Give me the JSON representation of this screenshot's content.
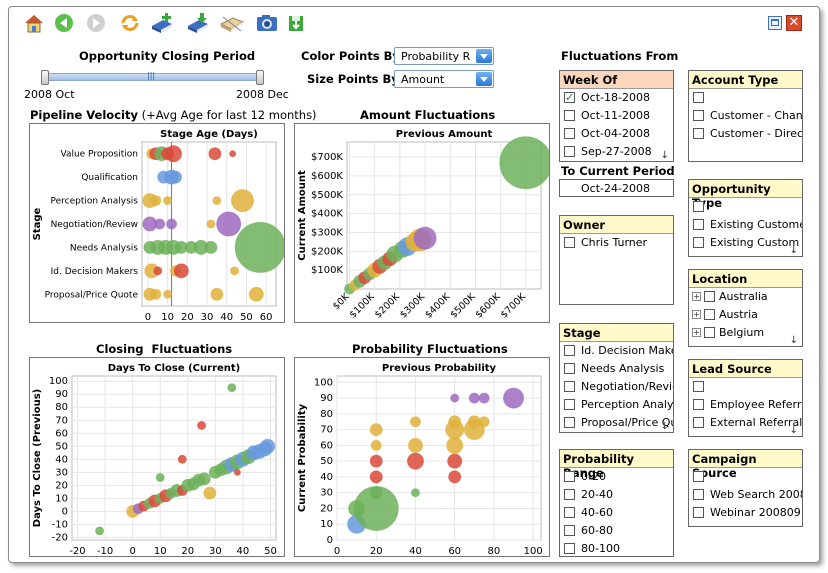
{
  "toolbar": {
    "buttons": [
      {
        "name": "home-icon",
        "color": "#4a7fc8"
      },
      {
        "name": "back-icon",
        "color": "#3aa83a"
      },
      {
        "name": "forward-icon",
        "color": "#bbbbbb"
      },
      {
        "name": "refresh-icon",
        "color": "#e8a020"
      },
      {
        "name": "add-book-icon",
        "color": "#3b6fc2"
      },
      {
        "name": "download-book-icon",
        "color": "#3b6fc2"
      },
      {
        "name": "hide-book-icon",
        "color": "#d8b070"
      },
      {
        "name": "camera-icon",
        "color": "#3b6fc2"
      },
      {
        "name": "save-icon",
        "color": "#3aa83a"
      }
    ]
  },
  "window_controls": {
    "restore": "restore-icon",
    "close": "close-icon"
  },
  "period": {
    "title": "Opportunity Closing Period",
    "start": "2008 Oct",
    "end": "2008 Dec"
  },
  "color_points": {
    "label": "Color Points By:",
    "value": "Probability R"
  },
  "size_points": {
    "label": "Size Points By:",
    "value": "Amount"
  },
  "fluctuations_from": "Fluctuations From",
  "week_of": {
    "title": "Week Of",
    "items": [
      "Oct-18-2008",
      "Oct-11-2008",
      "Oct-04-2008",
      "Sep-27-2008"
    ],
    "checked": [
      true,
      false,
      false,
      false
    ]
  },
  "to_current": {
    "label": "To Current Period",
    "value": "Oct-24-2008"
  },
  "owner": {
    "title": "Owner",
    "items": [
      "Chris Turner"
    ]
  },
  "stage_filter": {
    "title": "Stage",
    "items": [
      "Id. Decision Make",
      "Needs Analysis",
      "Negotiation/Reviev",
      "Perception Analys",
      "Proposal/Price Qu"
    ]
  },
  "prob_range": {
    "title": "Probability Range",
    "items": [
      "0-20",
      "20-40",
      "40-60",
      "60-80",
      "80-100"
    ]
  },
  "account_type": {
    "title": "Account Type",
    "items": [
      "",
      "Customer - Chann",
      "Customer - Direct"
    ]
  },
  "opp_type": {
    "title": "Opportunity Type",
    "items": [
      "",
      "Existing Customer",
      "Existing Custom"
    ]
  },
  "location": {
    "title": "Location",
    "items": [
      "Australia",
      "Austria",
      "Belgium"
    ]
  },
  "lead_source": {
    "title": "Lead Source",
    "items": [
      "",
      "Employee Referral",
      "External Referral"
    ]
  },
  "campaign": {
    "title": "Campaign Source",
    "items": [
      "",
      "Web Search 2008",
      "Webinar 200809"
    ]
  },
  "chart_data": [
    {
      "type": "scatter",
      "title": "Pipeline Velocity",
      "subtitle": "(+Avg Age for last 12 months)",
      "xlabel": "Stage Age (Days)",
      "ylabel": "Stage",
      "categories": [
        "Value Proposition",
        "Qualification",
        "Perception Analysis",
        "Negotiation/Review",
        "Needs Analysis",
        "Id. Decision Makers",
        "Proposal/Price Quote"
      ],
      "xticks": [
        0,
        10,
        20,
        30,
        40,
        50,
        60
      ],
      "xlim": [
        -3,
        65
      ],
      "points": [
        {
          "stage": 0,
          "x": 2,
          "r": 5,
          "c": "#e0b03a"
        },
        {
          "stage": 0,
          "x": 4,
          "r": 6,
          "c": "#d94a3a"
        },
        {
          "stage": 0,
          "x": 7,
          "r": 7,
          "c": "#6db05a"
        },
        {
          "stage": 0,
          "x": 10,
          "r": 6,
          "c": "#d94a3a"
        },
        {
          "stage": 0,
          "x": 13,
          "r": 8,
          "c": "#d94a3a"
        },
        {
          "stage": 0,
          "x": 34,
          "r": 6,
          "c": "#d94a3a"
        },
        {
          "stage": 0,
          "x": 43,
          "r": 3,
          "c": "#d94a3a"
        },
        {
          "stage": 1,
          "x": 8,
          "r": 6,
          "c": "#6699dd"
        },
        {
          "stage": 1,
          "x": 12,
          "r": 7,
          "c": "#6699dd"
        },
        {
          "stage": 1,
          "x": 14,
          "r": 6,
          "c": "#6699dd"
        },
        {
          "stage": 2,
          "x": 1,
          "r": 7,
          "c": "#e0b03a"
        },
        {
          "stage": 2,
          "x": 4,
          "r": 5,
          "c": "#e0b03a"
        },
        {
          "stage": 2,
          "x": 10,
          "r": 4,
          "c": "#e0b03a"
        },
        {
          "stage": 2,
          "x": 35,
          "r": 4,
          "c": "#e0b03a"
        },
        {
          "stage": 2,
          "x": 48,
          "r": 11,
          "c": "#e0b03a"
        },
        {
          "stage": 3,
          "x": 1,
          "r": 7,
          "c": "#9d6bc0"
        },
        {
          "stage": 3,
          "x": 6,
          "r": 5,
          "c": "#9d6bc0"
        },
        {
          "stage": 3,
          "x": 12,
          "r": 5,
          "c": "#9d6bc0"
        },
        {
          "stage": 3,
          "x": 32,
          "r": 4,
          "c": "#e0b03a"
        },
        {
          "stage": 3,
          "x": 41,
          "r": 12,
          "c": "#9d6bc0"
        },
        {
          "stage": 4,
          "x": 1,
          "r": 6,
          "c": "#6db05a"
        },
        {
          "stage": 4,
          "x": 5,
          "r": 7,
          "c": "#6db05a"
        },
        {
          "stage": 4,
          "x": 9,
          "r": 7,
          "c": "#6db05a"
        },
        {
          "stage": 4,
          "x": 13,
          "r": 7,
          "c": "#6db05a"
        },
        {
          "stage": 4,
          "x": 17,
          "r": 6,
          "c": "#6db05a"
        },
        {
          "stage": 4,
          "x": 22,
          "r": 6,
          "c": "#6db05a"
        },
        {
          "stage": 4,
          "x": 27,
          "r": 7,
          "c": "#6db05a"
        },
        {
          "stage": 4,
          "x": 32,
          "r": 6,
          "c": "#6db05a"
        },
        {
          "stage": 4,
          "x": 57,
          "r": 25,
          "c": "#6db05a"
        },
        {
          "stage": 5,
          "x": 2,
          "r": 7,
          "c": "#e0b03a"
        },
        {
          "stage": 5,
          "x": 5,
          "r": 4,
          "c": "#d94a3a"
        },
        {
          "stage": 5,
          "x": 14,
          "r": 5,
          "c": "#e0b03a"
        },
        {
          "stage": 5,
          "x": 17,
          "r": 7,
          "c": "#d94a3a"
        },
        {
          "stage": 5,
          "x": 44,
          "r": 4,
          "c": "#e0b03a"
        },
        {
          "stage": 6,
          "x": 1,
          "r": 6,
          "c": "#e0b03a"
        },
        {
          "stage": 6,
          "x": 4,
          "r": 5,
          "c": "#e0b03a"
        },
        {
          "stage": 6,
          "x": 10,
          "r": 4,
          "c": "#e0b03a"
        },
        {
          "stage": 6,
          "x": 35,
          "r": 6,
          "c": "#e0b03a"
        },
        {
          "stage": 6,
          "x": 55,
          "r": 7,
          "c": "#e0b03a"
        }
      ]
    },
    {
      "type": "scatter",
      "title": "Amount Fluctuations",
      "xlabel": "Previous Amount",
      "ylabel": "Current Amount",
      "xticks": [
        "$0K",
        "$100K",
        "$200K",
        "$300K",
        "$400K",
        "$500K",
        "$600K",
        "$700K"
      ],
      "yticks": [
        "$100K",
        "$200K",
        "$300K",
        "$400K",
        "$500K",
        "$600K",
        "$700K"
      ],
      "xlim": [
        -10,
        760
      ],
      "ylim": [
        0,
        780
      ],
      "points": [
        {
          "x": 0,
          "y": 0,
          "r": 5,
          "c": "#6db05a"
        },
        {
          "x": 20,
          "y": 20,
          "r": 5,
          "c": "#e0b03a"
        },
        {
          "x": 40,
          "y": 40,
          "r": 6,
          "c": "#6db05a"
        },
        {
          "x": 60,
          "y": 60,
          "r": 6,
          "c": "#d94a3a"
        },
        {
          "x": 80,
          "y": 80,
          "r": 6,
          "c": "#6db05a"
        },
        {
          "x": 100,
          "y": 100,
          "r": 7,
          "c": "#e0b03a"
        },
        {
          "x": 120,
          "y": 120,
          "r": 7,
          "c": "#d94a3a"
        },
        {
          "x": 140,
          "y": 140,
          "r": 7,
          "c": "#6db05a"
        },
        {
          "x": 160,
          "y": 160,
          "r": 7,
          "c": "#d94a3a"
        },
        {
          "x": 180,
          "y": 185,
          "r": 8,
          "c": "#6db05a"
        },
        {
          "x": 210,
          "y": 210,
          "r": 8,
          "c": "#6db05a"
        },
        {
          "x": 230,
          "y": 225,
          "r": 9,
          "c": "#6699dd"
        },
        {
          "x": 260,
          "y": 250,
          "r": 9,
          "c": "#e0b03a"
        },
        {
          "x": 280,
          "y": 260,
          "r": 11,
          "c": "#e0b03a"
        },
        {
          "x": 300,
          "y": 270,
          "r": 11,
          "c": "#9d6bc0"
        },
        {
          "x": 700,
          "y": 670,
          "r": 26,
          "c": "#6db05a"
        }
      ]
    },
    {
      "type": "scatter",
      "title": "Closing  Fluctuations",
      "xlabel": "Days To Close (Current)",
      "ylabel": "Days To Close (Previous)",
      "xticks": [
        -20,
        -10,
        0,
        10,
        20,
        30,
        40,
        50
      ],
      "yticks": [
        -20,
        -10,
        0,
        10,
        20,
        30,
        40,
        50,
        60,
        70,
        80,
        90,
        100
      ],
      "xlim": [
        -22,
        52
      ],
      "ylim": [
        -22,
        104
      ],
      "points": [
        {
          "x": -12,
          "y": -15,
          "r": 4,
          "c": "#6db05a"
        },
        {
          "x": 0,
          "y": 0,
          "r": 6,
          "c": "#e0b03a"
        },
        {
          "x": 2,
          "y": 2,
          "r": 5,
          "c": "#9d6bc0"
        },
        {
          "x": 4,
          "y": 4,
          "r": 5,
          "c": "#d94a3a"
        },
        {
          "x": 6,
          "y": 6,
          "r": 5,
          "c": "#6db05a"
        },
        {
          "x": 8,
          "y": 8,
          "r": 6,
          "c": "#d94a3a"
        },
        {
          "x": 10,
          "y": 10,
          "r": 5,
          "c": "#6db05a"
        },
        {
          "x": 12,
          "y": 12,
          "r": 6,
          "c": "#d94a3a"
        },
        {
          "x": 14,
          "y": 14,
          "r": 5,
          "c": "#6db05a"
        },
        {
          "x": 16,
          "y": 16,
          "r": 6,
          "c": "#6db05a"
        },
        {
          "x": 18,
          "y": 16,
          "r": 5,
          "c": "#d94a3a"
        },
        {
          "x": 20,
          "y": 20,
          "r": 6,
          "c": "#6db05a"
        },
        {
          "x": 22,
          "y": 21,
          "r": 6,
          "c": "#6db05a"
        },
        {
          "x": 24,
          "y": 24,
          "r": 6,
          "c": "#6db05a"
        },
        {
          "x": 26,
          "y": 25,
          "r": 6,
          "c": "#6db05a"
        },
        {
          "x": 28,
          "y": 14,
          "r": 6,
          "c": "#e0b03a"
        },
        {
          "x": 30,
          "y": 30,
          "r": 6,
          "c": "#6db05a"
        },
        {
          "x": 32,
          "y": 32,
          "r": 6,
          "c": "#6db05a"
        },
        {
          "x": 34,
          "y": 34,
          "r": 7,
          "c": "#6db05a"
        },
        {
          "x": 36,
          "y": 36,
          "r": 7,
          "c": "#6699dd"
        },
        {
          "x": 38,
          "y": 38,
          "r": 7,
          "c": "#6db05a"
        },
        {
          "x": 40,
          "y": 40,
          "r": 7,
          "c": "#6699dd"
        },
        {
          "x": 42,
          "y": 42,
          "r": 7,
          "c": "#6db05a"
        },
        {
          "x": 44,
          "y": 45,
          "r": 7,
          "c": "#6699dd"
        },
        {
          "x": 46,
          "y": 46,
          "r": 7,
          "c": "#6699dd"
        },
        {
          "x": 48,
          "y": 48,
          "r": 7,
          "c": "#6699dd"
        },
        {
          "x": 49,
          "y": 50,
          "r": 7,
          "c": "#6699dd"
        },
        {
          "x": 36,
          "y": 95,
          "r": 4,
          "c": "#6db05a"
        },
        {
          "x": 25,
          "y": 66,
          "r": 4,
          "c": "#d94a3a"
        },
        {
          "x": 18,
          "y": 40,
          "r": 4,
          "c": "#d94a3a"
        },
        {
          "x": 10,
          "y": 26,
          "r": 4,
          "c": "#6db05a"
        },
        {
          "x": 38,
          "y": 30,
          "r": 3,
          "c": "#d94a3a"
        }
      ]
    },
    {
      "type": "scatter",
      "title": "Probability Fluctuations",
      "xlabel": "Previous Probability",
      "ylabel": "Current Probability",
      "xticks": [
        0,
        20,
        40,
        60,
        80,
        100
      ],
      "yticks": [
        0,
        10,
        20,
        30,
        40,
        50,
        60,
        70,
        80,
        90,
        100
      ],
      "xlim": [
        0,
        104
      ],
      "ylim": [
        0,
        104
      ],
      "points": [
        {
          "x": 10,
          "y": 10,
          "r": 9,
          "c": "#6699dd"
        },
        {
          "x": 10,
          "y": 20,
          "r": 8,
          "c": "#6db05a"
        },
        {
          "x": 20,
          "y": 20,
          "r": 22,
          "c": "#6db05a"
        },
        {
          "x": 20,
          "y": 30,
          "r": 6,
          "c": "#6db05a"
        },
        {
          "x": 20,
          "y": 40,
          "r": 6,
          "c": "#d94a3a"
        },
        {
          "x": 20,
          "y": 50,
          "r": 6,
          "c": "#d94a3a"
        },
        {
          "x": 20,
          "y": 60,
          "r": 5,
          "c": "#e0b03a"
        },
        {
          "x": 20,
          "y": 70,
          "r": 6,
          "c": "#e0b03a"
        },
        {
          "x": 40,
          "y": 30,
          "r": 4,
          "c": "#6db05a"
        },
        {
          "x": 40,
          "y": 50,
          "r": 8,
          "c": "#d94a3a"
        },
        {
          "x": 40,
          "y": 60,
          "r": 7,
          "c": "#e0b03a"
        },
        {
          "x": 40,
          "y": 75,
          "r": 5,
          "c": "#e0b03a"
        },
        {
          "x": 60,
          "y": 40,
          "r": 6,
          "c": "#d94a3a"
        },
        {
          "x": 60,
          "y": 50,
          "r": 7,
          "c": "#d94a3a"
        },
        {
          "x": 60,
          "y": 60,
          "r": 8,
          "c": "#e0b03a"
        },
        {
          "x": 60,
          "y": 70,
          "r": 9,
          "c": "#e0b03a"
        },
        {
          "x": 60,
          "y": 75,
          "r": 6,
          "c": "#e0b03a"
        },
        {
          "x": 70,
          "y": 70,
          "r": 10,
          "c": "#e0b03a"
        },
        {
          "x": 75,
          "y": 75,
          "r": 5,
          "c": "#e0b03a"
        },
        {
          "x": 60,
          "y": 90,
          "r": 4,
          "c": "#9d6bc0"
        },
        {
          "x": 70,
          "y": 90,
          "r": 5,
          "c": "#9d6bc0"
        },
        {
          "x": 75,
          "y": 90,
          "r": 5,
          "c": "#9d6bc0"
        },
        {
          "x": 90,
          "y": 90,
          "r": 10,
          "c": "#9d6bc0"
        },
        {
          "x": 70,
          "y": 75,
          "r": 6,
          "c": "#e0b03a"
        }
      ]
    }
  ]
}
